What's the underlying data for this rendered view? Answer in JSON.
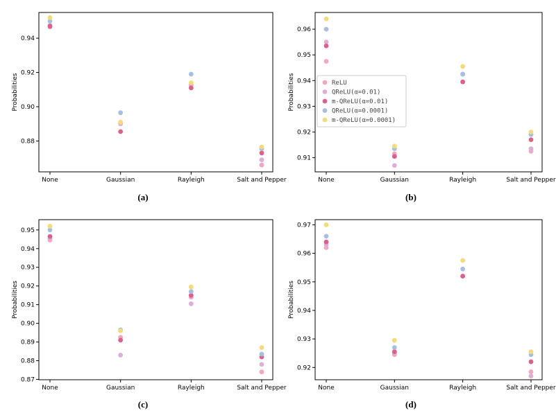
{
  "colors": {
    "ReLU": "#f4a6c0",
    "QReLU_001": "#dcb0d4",
    "mQReLU_001": "#d9628c",
    "QReLU_00001": "#a8bee0",
    "mQReLU_00001": "#f0dc7c"
  },
  "chart_data": [
    {
      "type": "scatter",
      "panel_label": "(a)",
      "categories": [
        "None",
        "Gaussian",
        "Rayleigh",
        "Salt and Pepper"
      ],
      "ylabel": "Probabilities",
      "xlabel": "",
      "ylim": [
        0.862,
        0.955
      ],
      "yticks": [
        "0.88",
        "0.90",
        "0.92",
        "0.94"
      ],
      "ytick_values": [
        0.88,
        0.9,
        0.92,
        0.94
      ],
      "legend": null,
      "series": [
        {
          "key": "ReLU",
          "values": [
            0.9465,
            0.89,
            0.913,
            0.866
          ]
        },
        {
          "key": "QReLU_001",
          "values": [
            0.9475,
            0.8905,
            0.9125,
            0.869
          ]
        },
        {
          "key": "mQReLU_001",
          "values": [
            0.947,
            0.8855,
            0.911,
            0.873
          ]
        },
        {
          "key": "QReLU_00001",
          "values": [
            0.95,
            0.8965,
            0.919,
            0.8755
          ]
        },
        {
          "key": "mQReLU_00001",
          "values": [
            0.952,
            0.891,
            0.914,
            0.8765
          ]
        }
      ]
    },
    {
      "type": "scatter",
      "panel_label": "(b)",
      "categories": [
        "None",
        "Gaussian",
        "Rayleigh",
        "Salt and Pepper"
      ],
      "ylabel": "Probabilities",
      "xlabel": "",
      "ylim": [
        0.9045,
        0.9665
      ],
      "yticks": [
        "0.91",
        "0.92",
        "0.93",
        "0.94",
        "0.95",
        "0.96"
      ],
      "ytick_values": [
        0.91,
        0.92,
        0.93,
        0.94,
        0.95,
        0.96
      ],
      "legend": {
        "position": "center-left",
        "entries": [
          {
            "key": "ReLU",
            "label": "ReLU"
          },
          {
            "key": "QReLU_001",
            "label": "QReLU(α=0.01)"
          },
          {
            "key": "mQReLU_001",
            "label": "m-QReLU(α=0.01)"
          },
          {
            "key": "QReLU_00001",
            "label": "QReLU(α=0.0001)"
          },
          {
            "key": "mQReLU_00001",
            "label": "m-QReLU(α=0.0001)"
          }
        ]
      },
      "series": [
        {
          "key": "ReLU",
          "values": [
            0.9475,
            0.9115,
            0.9425,
            0.9125
          ]
        },
        {
          "key": "QReLU_001",
          "values": [
            0.955,
            0.907,
            0.9425,
            0.9135
          ]
        },
        {
          "key": "mQReLU_001",
          "values": [
            0.9535,
            0.9105,
            0.9395,
            0.917
          ]
        },
        {
          "key": "QReLU_00001",
          "values": [
            0.96,
            0.9135,
            0.9425,
            0.919
          ]
        },
        {
          "key": "mQReLU_00001",
          "values": [
            0.964,
            0.9145,
            0.9455,
            0.92
          ]
        }
      ]
    },
    {
      "type": "scatter",
      "panel_label": "(c)",
      "categories": [
        "None",
        "Gaussian",
        "Rayleigh",
        "Salt and Pepper"
      ],
      "ylabel": "Probabilities",
      "xlabel": "",
      "ylim": [
        0.8698,
        0.9555
      ],
      "yticks": [
        "0.87",
        "0.88",
        "0.89",
        "0.90",
        "0.91",
        "0.92",
        "0.93",
        "0.94",
        "0.95"
      ],
      "ytick_values": [
        0.87,
        0.88,
        0.89,
        0.9,
        0.91,
        0.92,
        0.93,
        0.94,
        0.95
      ],
      "legend": null,
      "series": [
        {
          "key": "ReLU",
          "values": [
            0.9445,
            0.8925,
            0.914,
            0.874
          ]
        },
        {
          "key": "QReLU_001",
          "values": [
            0.9455,
            0.883,
            0.9105,
            0.878
          ]
        },
        {
          "key": "mQReLU_001",
          "values": [
            0.9465,
            0.891,
            0.915,
            0.882
          ]
        },
        {
          "key": "QReLU_00001",
          "values": [
            0.95,
            0.8965,
            0.917,
            0.8835
          ]
        },
        {
          "key": "mQReLU_00001",
          "values": [
            0.952,
            0.896,
            0.9195,
            0.887
          ]
        }
      ]
    },
    {
      "type": "scatter",
      "panel_label": "(d)",
      "categories": [
        "None",
        "Gaussian",
        "Rayleigh",
        "Salt and Pepper"
      ],
      "ylabel": "Probabilities",
      "xlabel": "",
      "ylim": [
        0.9157,
        0.9718
      ],
      "yticks": [
        "0.92",
        "0.93",
        "0.94",
        "0.95",
        "0.96",
        "0.97"
      ],
      "ytick_values": [
        0.92,
        0.93,
        0.94,
        0.95,
        0.96,
        0.97
      ],
      "legend": null,
      "series": [
        {
          "key": "ReLU",
          "values": [
            0.962,
            0.9245,
            0.952,
            0.9185
          ]
        },
        {
          "key": "QReLU_001",
          "values": [
            0.963,
            0.925,
            0.952,
            0.917
          ]
        },
        {
          "key": "mQReLU_001",
          "values": [
            0.964,
            0.9255,
            0.952,
            0.922
          ]
        },
        {
          "key": "QReLU_00001",
          "values": [
            0.966,
            0.927,
            0.9545,
            0.9245
          ]
        },
        {
          "key": "mQReLU_00001",
          "values": [
            0.97,
            0.9295,
            0.9575,
            0.9255
          ]
        }
      ]
    }
  ]
}
